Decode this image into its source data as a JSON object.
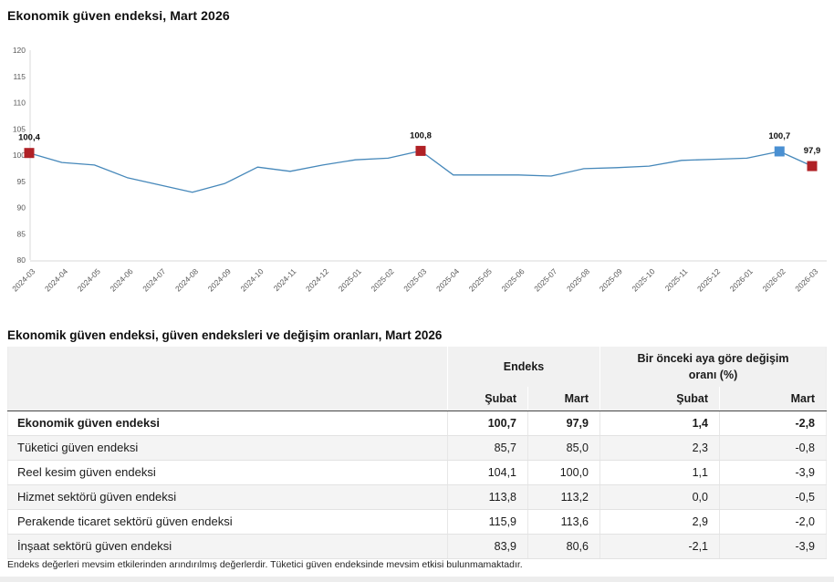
{
  "page": {
    "chart_title": "Ekonomik güven endeksi, Mart 2026",
    "table_title": "Ekonomik güven endeksi, güven endeksleri ve değişim oranları, Mart 2026",
    "footnote": "Endeks değerleri mevsim etkilerinden arındırılmış değerlerdir. Tüketici güven endeksinde mevsim etkisi bulunmamaktadır."
  },
  "chart_data": {
    "type": "line",
    "title": "Ekonomik güven endeksi, Mart 2026",
    "categories": [
      "2024-03",
      "2024-04",
      "2024-05",
      "2024-06",
      "2024-07",
      "2024-08",
      "2024-09",
      "2024-10",
      "2024-11",
      "2024-12",
      "2025-01",
      "2025-02",
      "2025-03",
      "2025-04",
      "2025-05",
      "2025-06",
      "2025-07",
      "2025-08",
      "2025-09",
      "2025-10",
      "2025-11",
      "2025-12",
      "2026-01",
      "2026-02",
      "2026-03"
    ],
    "values": [
      100.4,
      98.6,
      98.1,
      95.7,
      94.3,
      92.9,
      94.6,
      97.7,
      96.9,
      98.1,
      99.1,
      99.4,
      100.8,
      96.2,
      96.2,
      96.2,
      96.0,
      97.4,
      97.6,
      97.9,
      99.0,
      99.2,
      99.4,
      100.7,
      97.9
    ],
    "ylim": [
      80,
      120
    ],
    "ytick_step": 5,
    "grid": false,
    "legend": null,
    "line_color": "#4688ba",
    "axis_color": "#d8d8d8",
    "tick_label_color": "#595959",
    "labeled_points": [
      {
        "index": 0,
        "label": "100,4",
        "marker_color": "#b02126"
      },
      {
        "index": 12,
        "label": "100,8",
        "marker_color": "#b02126"
      },
      {
        "index": 23,
        "label": "100,7",
        "marker_color": "#4a90d2"
      },
      {
        "index": 24,
        "label": "97,9",
        "marker_color": "#b02126"
      }
    ]
  },
  "table": {
    "group_headers": [
      {
        "label": "",
        "colspan": 1
      },
      {
        "label": "Endeks",
        "colspan": 2
      },
      {
        "label": "Bir önceki aya göre değişim oranı (%)",
        "colspan": 2
      }
    ],
    "sub_headers": [
      "",
      "Şubat",
      "Mart",
      "Şubat",
      "Mart"
    ],
    "rows": [
      {
        "label": "Ekonomik güven endeksi",
        "values": [
          "100,7",
          "97,9",
          "1,4",
          "-2,8"
        ]
      },
      {
        "label": "Tüketici güven endeksi",
        "values": [
          "85,7",
          "85,0",
          "2,3",
          "-0,8"
        ]
      },
      {
        "label": "Reel kesim güven endeksi",
        "values": [
          "104,1",
          "100,0",
          "1,1",
          "-3,9"
        ]
      },
      {
        "label": "Hizmet sektörü güven endeksi",
        "values": [
          "113,8",
          "113,2",
          "0,0",
          "-0,5"
        ]
      },
      {
        "label": "Perakende ticaret sektörü güven endeksi",
        "values": [
          "115,9",
          "113,6",
          "2,9",
          "-2,0"
        ]
      },
      {
        "label": "İnşaat sektörü güven endeksi",
        "values": [
          "83,9",
          "80,6",
          "-2,1",
          "-3,9"
        ]
      }
    ]
  }
}
